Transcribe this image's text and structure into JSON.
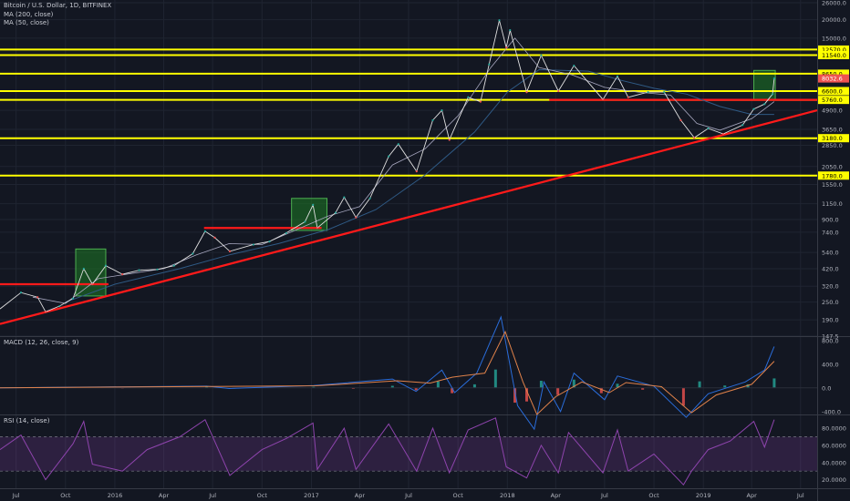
{
  "colors": {
    "background": "#131722",
    "grid": "#1f2431",
    "yellow": "#ffff00",
    "red": "#ff1a1a",
    "green": "#1e7a24",
    "candle_up": "#26a69a",
    "candle_down": "#ef5350",
    "ma200": "#2f5a85",
    "ma50": "#a8a8c0",
    "macd": "#2a6ddb",
    "signal": "#e0824a",
    "rsi": "#8e44ad",
    "price_badge": "#ef5350"
  },
  "legend": {
    "main": "Bitcoin / U.S. Dollar, 1D, BITFINEX",
    "ma200": "MA (200, close)",
    "ma50": "MA (50, close)",
    "macd": "MACD (12, 26, close, 9)",
    "rsi": "RSI (14, close)"
  },
  "chart_data": {
    "type": "line",
    "scale": "log",
    "price_axis": [
      "26000.0",
      "20000.0",
      "15000.0",
      "8650.0",
      "6600.0",
      "4900.0",
      "3650.0",
      "2850.0",
      "2050.0",
      "1550.0",
      "1150.0",
      "900.0",
      "740.0",
      "540.0",
      "420.0",
      "320.0",
      "250.0",
      "190.0",
      "147.5"
    ],
    "price_axis_values": [
      26000,
      20000,
      15000,
      8650,
      6600,
      4900,
      3650,
      2850,
      2050,
      1550,
      1150,
      900,
      740,
      540,
      420,
      320,
      250,
      190,
      147.5
    ],
    "time_axis": [
      "Jul",
      "Oct",
      "2016",
      "Apr",
      "Jul",
      "Oct",
      "2017",
      "Apr",
      "Jul",
      "Oct",
      "2018",
      "Apr",
      "Jul",
      "Oct",
      "2019",
      "Apr",
      "Jul"
    ],
    "time_axis_dates": [
      "2015-07-01",
      "2015-10-01",
      "2016-01-01",
      "2016-04-01",
      "2016-07-01",
      "2016-10-01",
      "2017-01-01",
      "2017-04-01",
      "2017-07-01",
      "2017-10-01",
      "2018-01-01",
      "2018-04-01",
      "2018-07-01",
      "2018-10-01",
      "2019-01-01",
      "2019-04-01",
      "2019-07-01"
    ],
    "x_range": [
      "2015-06-01",
      "2019-08-01"
    ],
    "y_range": [
      147.5,
      26000
    ],
    "levels": [
      {
        "label": "12570.0",
        "value": 12570,
        "color": "yellow"
      },
      {
        "label": "11540.0",
        "value": 11540,
        "color": "yellow"
      },
      {
        "label": "8650.0",
        "value": 8650,
        "color": "yellow"
      },
      {
        "label": "6600.0",
        "value": 6600,
        "color": "yellow"
      },
      {
        "label": "5760.0",
        "value": 5760,
        "color": "yellow"
      },
      {
        "label": "3180.0",
        "value": 3180,
        "color": "yellow"
      },
      {
        "label": "1780.0",
        "value": 1780,
        "color": "yellow"
      }
    ],
    "current_price": {
      "label": "8032.6",
      "value": 8032.6
    },
    "price_series": [
      [
        "2015-06-01",
        225
      ],
      [
        "2015-07-10",
        290
      ],
      [
        "2015-08-10",
        270
      ],
      [
        "2015-08-25",
        215
      ],
      [
        "2015-09-20",
        235
      ],
      [
        "2015-10-15",
        265
      ],
      [
        "2015-11-04",
        420
      ],
      [
        "2015-11-20",
        330
      ],
      [
        "2015-12-15",
        440
      ],
      [
        "2016-01-15",
        385
      ],
      [
        "2016-02-15",
        410
      ],
      [
        "2016-03-20",
        415
      ],
      [
        "2016-04-20",
        440
      ],
      [
        "2016-05-25",
        530
      ],
      [
        "2016-06-17",
        750
      ],
      [
        "2016-07-05",
        680
      ],
      [
        "2016-08-02",
        550
      ],
      [
        "2016-09-15",
        610
      ],
      [
        "2016-10-15",
        640
      ],
      [
        "2016-11-15",
        730
      ],
      [
        "2016-12-20",
        870
      ],
      [
        "2017-01-04",
        1130
      ],
      [
        "2017-01-12",
        790
      ],
      [
        "2017-02-15",
        1000
      ],
      [
        "2017-03-03",
        1270
      ],
      [
        "2017-03-25",
        930
      ],
      [
        "2017-04-20",
        1250
      ],
      [
        "2017-05-25",
        2400
      ],
      [
        "2017-06-12",
        2900
      ],
      [
        "2017-07-16",
        1900
      ],
      [
        "2017-08-15",
        4200
      ],
      [
        "2017-09-01",
        4900
      ],
      [
        "2017-09-15",
        3100
      ],
      [
        "2017-10-20",
        6000
      ],
      [
        "2017-11-12",
        5600
      ],
      [
        "2017-11-28",
        10000
      ],
      [
        "2017-12-17",
        19800
      ],
      [
        "2017-12-30",
        13000
      ],
      [
        "2018-01-06",
        17000
      ],
      [
        "2018-02-06",
        6500
      ],
      [
        "2018-03-05",
        11500
      ],
      [
        "2018-04-06",
        6600
      ],
      [
        "2018-05-05",
        9800
      ],
      [
        "2018-06-28",
        5800
      ],
      [
        "2018-07-25",
        8300
      ],
      [
        "2018-08-14",
        6000
      ],
      [
        "2018-09-20",
        6500
      ],
      [
        "2018-10-20",
        6500
      ],
      [
        "2018-11-20",
        4200
      ],
      [
        "2018-12-15",
        3200
      ],
      [
        "2019-01-10",
        3700
      ],
      [
        "2019-02-07",
        3400
      ],
      [
        "2019-03-15",
        3900
      ],
      [
        "2019-04-05",
        5000
      ],
      [
        "2019-04-25",
        5400
      ],
      [
        "2019-05-10",
        6300
      ],
      [
        "2019-05-13",
        8032.6
      ]
    ],
    "ma200_series": [
      [
        "2015-10-01",
        250
      ],
      [
        "2016-01-01",
        330
      ],
      [
        "2016-05-01",
        420
      ],
      [
        "2016-08-01",
        520
      ],
      [
        "2016-11-01",
        620
      ],
      [
        "2017-02-01",
        770
      ],
      [
        "2017-05-01",
        1050
      ],
      [
        "2017-08-01",
        1800
      ],
      [
        "2017-11-01",
        3500
      ],
      [
        "2018-01-01",
        6500
      ],
      [
        "2018-03-01",
        9200
      ],
      [
        "2018-06-01",
        9000
      ],
      [
        "2018-08-01",
        7800
      ],
      [
        "2018-10-01",
        6900
      ],
      [
        "2018-12-01",
        6300
      ],
      [
        "2019-02-01",
        5200
      ],
      [
        "2019-04-01",
        4600
      ],
      [
        "2019-05-13",
        4600
      ]
    ],
    "ma50_series": [
      [
        "2015-08-01",
        270
      ],
      [
        "2015-10-01",
        245
      ],
      [
        "2015-12-01",
        360
      ],
      [
        "2016-02-01",
        390
      ],
      [
        "2016-04-01",
        420
      ],
      [
        "2016-06-01",
        520
      ],
      [
        "2016-08-01",
        620
      ],
      [
        "2016-10-01",
        610
      ],
      [
        "2016-12-01",
        760
      ],
      [
        "2017-02-01",
        950
      ],
      [
        "2017-04-01",
        1100
      ],
      [
        "2017-06-01",
        2100
      ],
      [
        "2017-08-01",
        2700
      ],
      [
        "2017-10-01",
        4500
      ],
      [
        "2017-12-01",
        9500
      ],
      [
        "2018-01-15",
        15000
      ],
      [
        "2018-03-01",
        9500
      ],
      [
        "2018-05-01",
        8500
      ],
      [
        "2018-07-01",
        7000
      ],
      [
        "2018-09-01",
        6500
      ],
      [
        "2018-11-01",
        6200
      ],
      [
        "2018-12-20",
        4000
      ],
      [
        "2019-02-01",
        3600
      ],
      [
        "2019-04-01",
        4300
      ],
      [
        "2019-05-13",
        5600
      ]
    ],
    "support_lines": [
      {
        "from": [
          "2015-06-01",
          178
        ],
        "to": [
          "2019-08-01",
          4900
        ],
        "color": "red"
      },
      {
        "from": [
          "2015-06-01",
          330
        ],
        "to": [
          "2015-12-20",
          330
        ],
        "color": "red"
      },
      {
        "from": [
          "2016-06-15",
          790
        ],
        "to": [
          "2017-01-20",
          790
        ],
        "color": "red"
      },
      {
        "from": [
          "2018-03-20",
          5760
        ],
        "to": [
          "2019-08-01",
          5760
        ],
        "color": "red"
      }
    ],
    "boxes": [
      {
        "from": [
          "2015-10-20",
          275
        ],
        "to": [
          "2015-12-15",
          570
        ]
      },
      {
        "from": [
          "2016-11-25",
          760
        ],
        "to": [
          "2017-01-30",
          1250
        ]
      },
      {
        "from": [
          "2019-04-05",
          5800
        ],
        "to": [
          "2019-05-15",
          9100
        ]
      }
    ],
    "macd": {
      "axis": [
        "800.0",
        "400.0",
        "0.0",
        "-400.0"
      ],
      "axis_values": [
        800,
        400,
        0,
        -400
      ],
      "range": [
        -450,
        860
      ],
      "macd_series": [
        [
          "2015-06-01",
          2
        ],
        [
          "2016-06-20",
          30
        ],
        [
          "2016-08-01",
          -10
        ],
        [
          "2017-01-05",
          40
        ],
        [
          "2017-06-01",
          150
        ],
        [
          "2017-07-15",
          -60
        ],
        [
          "2017-09-01",
          300
        ],
        [
          "2017-09-25",
          -80
        ],
        [
          "2017-11-05",
          250
        ],
        [
          "2017-12-20",
          1200
        ],
        [
          "2018-01-20",
          -300
        ],
        [
          "2018-02-20",
          -700
        ],
        [
          "2018-03-10",
          100
        ],
        [
          "2018-04-10",
          -400
        ],
        [
          "2018-05-05",
          250
        ],
        [
          "2018-07-01",
          -200
        ],
        [
          "2018-07-25",
          200
        ],
        [
          "2018-10-01",
          30
        ],
        [
          "2018-11-30",
          -500
        ],
        [
          "2019-01-10",
          -100
        ],
        [
          "2019-03-20",
          100
        ],
        [
          "2019-04-25",
          300
        ],
        [
          "2019-05-13",
          700
        ]
      ],
      "signal_series": [
        [
          "2015-06-01",
          2
        ],
        [
          "2016-07-01",
          25
        ],
        [
          "2017-01-10",
          35
        ],
        [
          "2017-06-10",
          120
        ],
        [
          "2017-08-10",
          80
        ],
        [
          "2017-09-20",
          180
        ],
        [
          "2017-11-20",
          250
        ],
        [
          "2017-12-28",
          950
        ],
        [
          "2018-01-30",
          100
        ],
        [
          "2018-02-25",
          -450
        ],
        [
          "2018-04-01",
          -150
        ],
        [
          "2018-05-20",
          100
        ],
        [
          "2018-07-10",
          -80
        ],
        [
          "2018-08-10",
          90
        ],
        [
          "2018-10-15",
          20
        ],
        [
          "2018-12-10",
          -420
        ],
        [
          "2019-01-25",
          -120
        ],
        [
          "2019-04-01",
          60
        ],
        [
          "2019-05-13",
          450
        ]
      ],
      "hist_series": [
        [
          "2015-08-01",
          3
        ],
        [
          "2015-11-04",
          14
        ],
        [
          "2016-01-15",
          -8
        ],
        [
          "2016-06-20",
          20
        ],
        [
          "2016-08-10",
          -12
        ],
        [
          "2017-01-05",
          18
        ],
        [
          "2017-03-20",
          -15
        ],
        [
          "2017-06-01",
          35
        ],
        [
          "2017-07-15",
          -40
        ],
        [
          "2017-08-25",
          110
        ],
        [
          "2017-09-20",
          -90
        ],
        [
          "2017-11-01",
          60
        ],
        [
          "2017-12-10",
          310
        ],
        [
          "2018-01-15",
          -250
        ],
        [
          "2018-02-06",
          -230
        ],
        [
          "2018-03-05",
          120
        ],
        [
          "2018-04-05",
          -120
        ],
        [
          "2018-05-05",
          140
        ],
        [
          "2018-06-25",
          -90
        ],
        [
          "2018-07-25",
          70
        ],
        [
          "2018-09-10",
          -30
        ],
        [
          "2018-10-15",
          12
        ],
        [
          "2018-11-25",
          -300
        ],
        [
          "2018-12-25",
          110
        ],
        [
          "2019-02-10",
          40
        ],
        [
          "2019-03-25",
          60
        ],
        [
          "2019-05-13",
          160
        ]
      ]
    },
    "rsi": {
      "axis": [
        "80.0000",
        "60.0000",
        "40.0000",
        "20.0000"
      ],
      "axis_values": [
        80,
        60,
        40,
        20
      ],
      "range": [
        10,
        95
      ],
      "band": [
        30,
        70
      ],
      "series": [
        [
          "2015-06-01",
          55
        ],
        [
          "2015-07-10",
          72
        ],
        [
          "2015-08-25",
          20
        ],
        [
          "2015-10-15",
          62
        ],
        [
          "2015-11-04",
          88
        ],
        [
          "2015-11-20",
          38
        ],
        [
          "2016-01-15",
          30
        ],
        [
          "2016-03-01",
          55
        ],
        [
          "2016-05-01",
          70
        ],
        [
          "2016-06-17",
          90
        ],
        [
          "2016-08-02",
          25
        ],
        [
          "2016-10-01",
          55
        ],
        [
          "2016-11-15",
          68
        ],
        [
          "2017-01-04",
          86
        ],
        [
          "2017-01-12",
          32
        ],
        [
          "2017-03-03",
          80
        ],
        [
          "2017-03-25",
          32
        ],
        [
          "2017-05-25",
          85
        ],
        [
          "2017-07-16",
          30
        ],
        [
          "2017-08-15",
          80
        ],
        [
          "2017-09-15",
          28
        ],
        [
          "2017-10-20",
          78
        ],
        [
          "2017-12-10",
          92
        ],
        [
          "2017-12-30",
          35
        ],
        [
          "2018-02-06",
          22
        ],
        [
          "2018-03-05",
          60
        ],
        [
          "2018-04-06",
          28
        ],
        [
          "2018-04-25",
          75
        ],
        [
          "2018-06-28",
          28
        ],
        [
          "2018-07-25",
          78
        ],
        [
          "2018-08-14",
          30
        ],
        [
          "2018-10-01",
          50
        ],
        [
          "2018-11-25",
          14
        ],
        [
          "2018-12-10",
          30
        ],
        [
          "2019-01-10",
          55
        ],
        [
          "2019-02-20",
          65
        ],
        [
          "2019-04-05",
          88
        ],
        [
          "2019-04-25",
          58
        ],
        [
          "2019-05-13",
          90
        ]
      ]
    }
  }
}
